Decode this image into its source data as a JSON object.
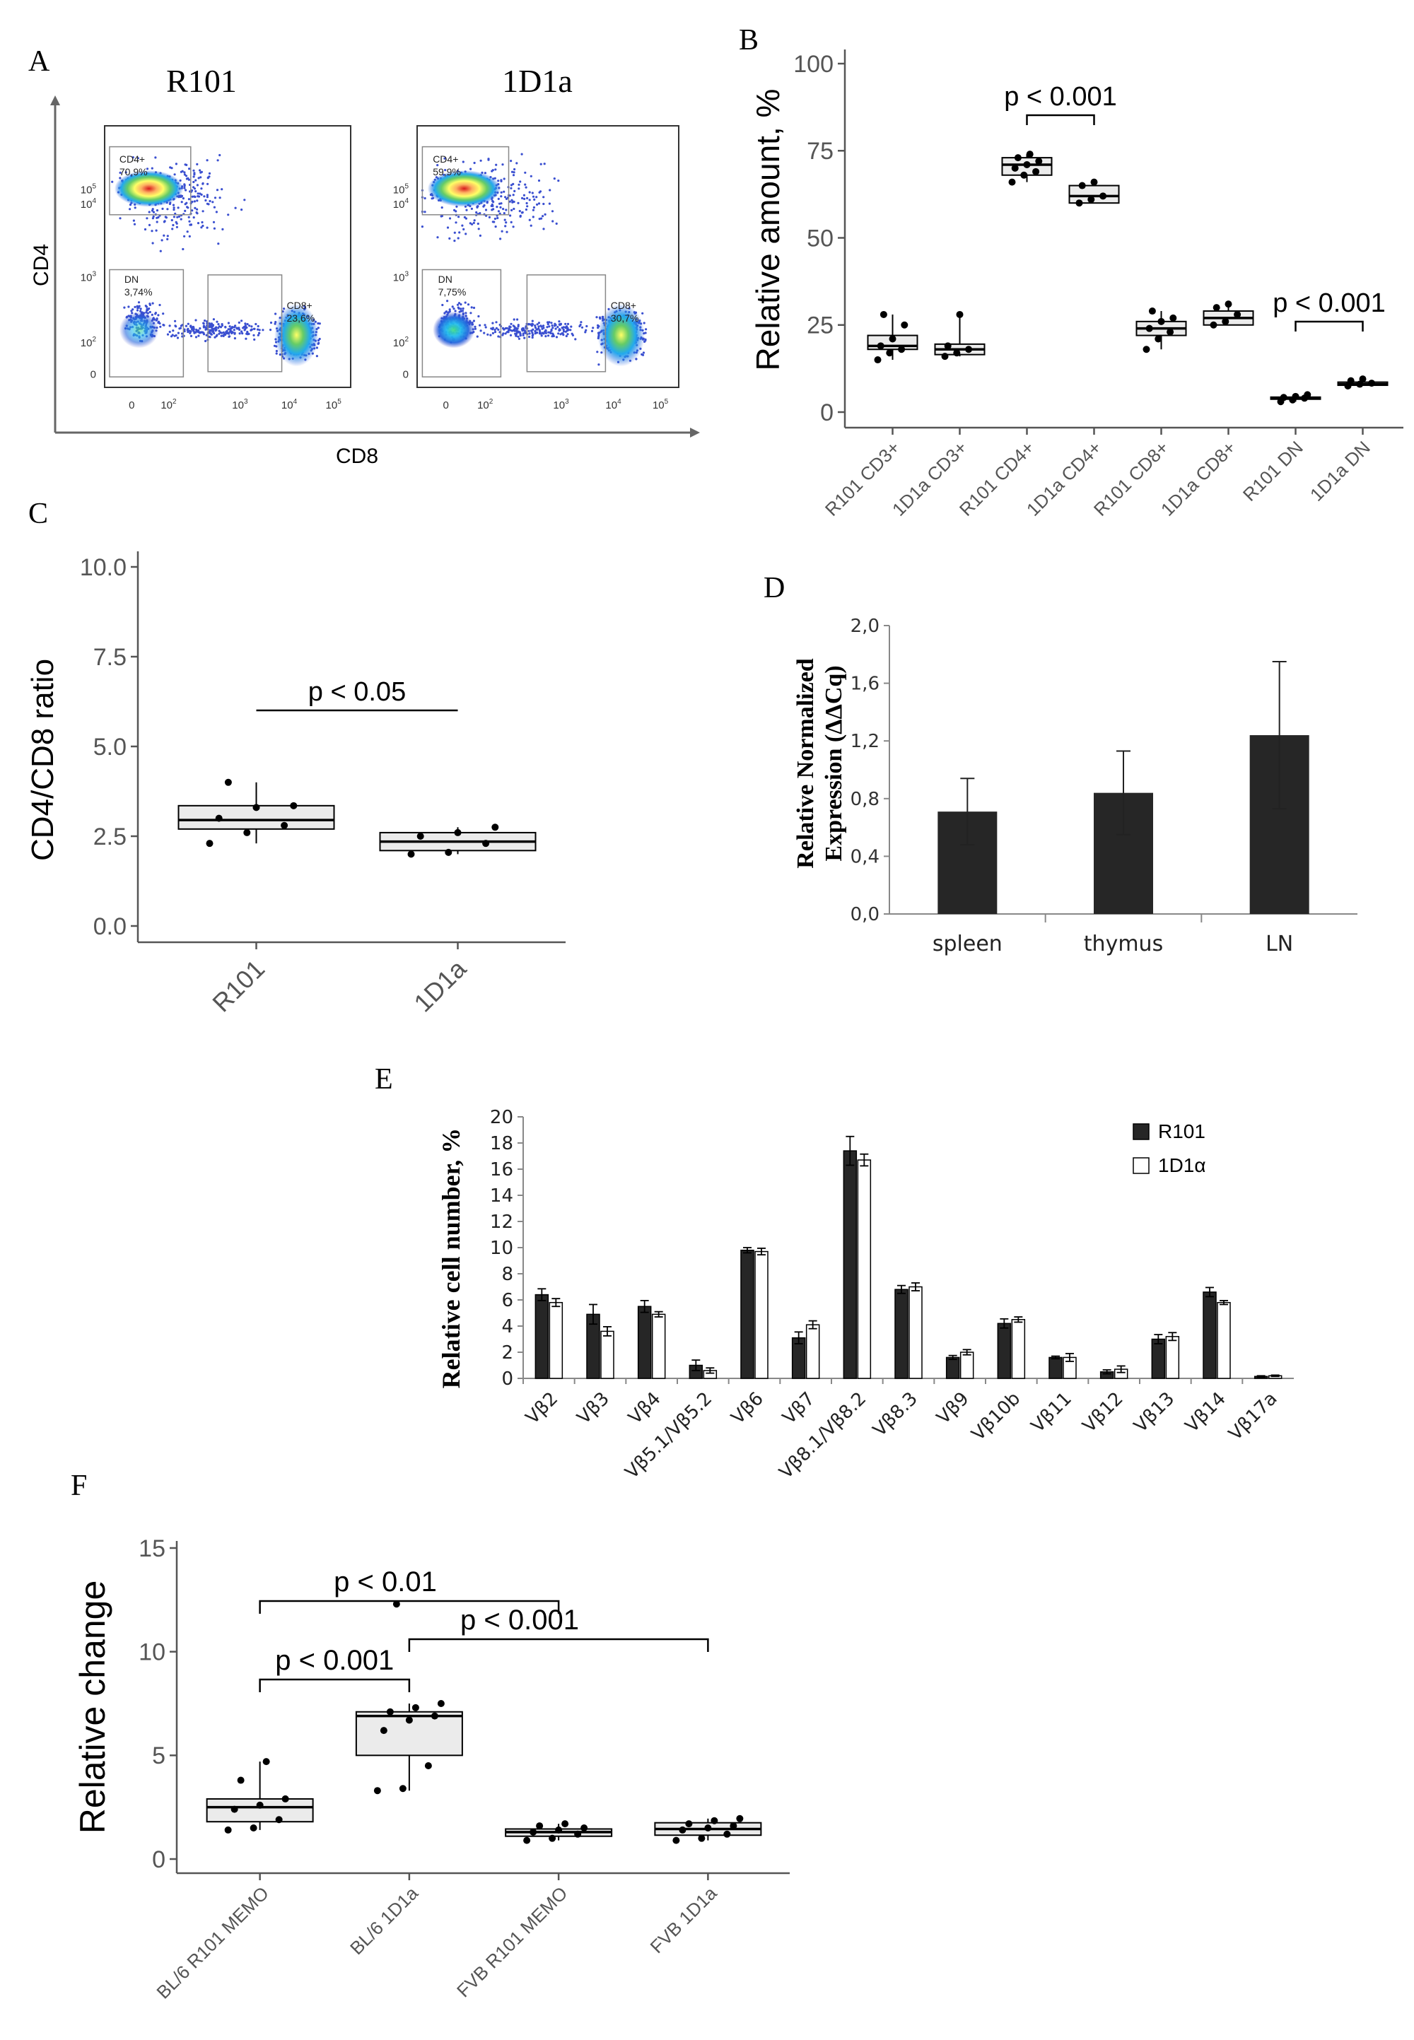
{
  "panel_letters": {
    "A": "A",
    "B": "B",
    "C": "C",
    "D": "D",
    "E": "E",
    "F": "F"
  },
  "colors": {
    "dark_bar": "#262626",
    "box_fill": "#ebebeb",
    "axis": "#404040"
  },
  "chart_data": [
    {
      "id": "A",
      "type": "scatter",
      "subtype": "flow-cytometry-density",
      "xlabel": "CD8",
      "ylabel": "CD4",
      "x_ticks": [
        "0",
        "10^2",
        "10^3",
        "10^4",
        "10^5"
      ],
      "y_ticks": [
        "0",
        "10^2",
        "10^3",
        "10^4",
        "10^5"
      ],
      "plots": [
        {
          "title": "R101",
          "gates": [
            {
              "name": "CD4+",
              "percent": "70,9%"
            },
            {
              "name": "DN",
              "percent": "3,74%"
            },
            {
              "name": "CD8+",
              "percent": "23,6%"
            }
          ]
        },
        {
          "title": "1D1a",
          "gates": [
            {
              "name": "CD4+",
              "percent": "59,9%"
            },
            {
              "name": "DN",
              "percent": "7,75%"
            },
            {
              "name": "CD8+",
              "percent": "30,7%"
            }
          ]
        }
      ]
    },
    {
      "id": "B",
      "type": "box",
      "ylabel": "Relative amount, %",
      "ylim": [
        0,
        100
      ],
      "yticks": [
        0,
        25,
        50,
        75,
        100
      ],
      "categories": [
        "R101 CD3+",
        "1D1a CD3+",
        "R101 CD4+",
        "1D1a CD4+",
        "R101 CD8+",
        "1D1a CD8+",
        "R101 DN",
        "1D1a DN"
      ],
      "boxes": [
        {
          "q1": 18,
          "median": 19,
          "q3": 22,
          "whisker_low": 15,
          "whisker_high": 28,
          "points": [
            15,
            17,
            18,
            19,
            21,
            25,
            28
          ]
        },
        {
          "q1": 16.5,
          "median": 18,
          "q3": 19.5,
          "whisker_low": 16,
          "whisker_high": 28,
          "points": [
            16,
            17,
            18,
            19,
            28
          ]
        },
        {
          "q1": 68,
          "median": 71,
          "q3": 73,
          "whisker_low": 66,
          "whisker_high": 74,
          "points": [
            66,
            68,
            69,
            70,
            71,
            72,
            73,
            74
          ]
        },
        {
          "q1": 60,
          "median": 62,
          "q3": 65,
          "whisker_low": 60,
          "whisker_high": 66,
          "points": [
            60,
            61,
            62,
            65,
            66
          ]
        },
        {
          "q1": 22,
          "median": 24,
          "q3": 26,
          "whisker_low": 18,
          "whisker_high": 29,
          "points": [
            18,
            21,
            23,
            24,
            26,
            27,
            29
          ]
        },
        {
          "q1": 25,
          "median": 27,
          "q3": 29,
          "whisker_low": 25,
          "whisker_high": 31,
          "points": [
            25,
            26,
            28,
            30,
            31
          ]
        },
        {
          "q1": 3.7,
          "median": 4,
          "q3": 4.3,
          "whisker_low": 3,
          "whisker_high": 5,
          "points": [
            3,
            3.5,
            4,
            4.2,
            4.5,
            5
          ]
        },
        {
          "q1": 7.7,
          "median": 8,
          "q3": 8.6,
          "whisker_low": 7.5,
          "whisker_high": 9.5,
          "points": [
            7.5,
            8,
            8.3,
            9,
            9.5
          ]
        }
      ],
      "annotations": [
        {
          "label": "p < 0.001",
          "between": [
            2,
            3
          ]
        },
        {
          "label": "p < 0.001",
          "between": [
            6,
            7
          ]
        }
      ]
    },
    {
      "id": "C",
      "type": "box",
      "ylabel": "CD4/CD8 ratio",
      "ylim": [
        0,
        10
      ],
      "yticks": [
        "0.0",
        "2.5",
        "5.0",
        "7.5",
        "10.0"
      ],
      "categories": [
        "R101",
        "1D1a"
      ],
      "boxes": [
        {
          "q1": 2.7,
          "median": 2.95,
          "q3": 3.35,
          "whisker_low": 2.3,
          "whisker_high": 4.0,
          "points": [
            2.3,
            2.6,
            2.8,
            3.0,
            3.3,
            3.35,
            4.0
          ]
        },
        {
          "q1": 2.1,
          "median": 2.35,
          "q3": 2.6,
          "whisker_low": 2.0,
          "whisker_high": 2.75,
          "points": [
            2.0,
            2.05,
            2.3,
            2.5,
            2.6,
            2.75
          ]
        }
      ],
      "annotations": [
        {
          "label": "p < 0.05",
          "between": [
            0,
            1
          ]
        }
      ]
    },
    {
      "id": "D",
      "type": "bar",
      "ylabel_lines": [
        "Relative Normalized",
        "Expression (ΔΔCq)"
      ],
      "ylim": [
        0,
        2
      ],
      "yticks": [
        "0,0",
        "0,4",
        "0,8",
        "1,2",
        "1,6",
        "2,0"
      ],
      "categories": [
        "spleen",
        "thymus",
        "LN"
      ],
      "values": [
        0.71,
        0.84,
        1.24
      ],
      "errors": [
        0.23,
        0.29,
        0.51
      ]
    },
    {
      "id": "E",
      "type": "bar",
      "ylabel": "Relative cell number, %",
      "ylim": [
        0,
        20
      ],
      "yticks": [
        0,
        2,
        4,
        6,
        8,
        10,
        12,
        14,
        16,
        18,
        20
      ],
      "categories": [
        "Vβ2",
        "Vβ3",
        "Vβ4",
        "Vβ5.1/Vβ5.2",
        "Vβ6",
        "Vβ7",
        "Vβ8.1/Vβ8.2",
        "Vβ8.3",
        "Vβ9",
        "Vβ10b",
        "Vβ11",
        "Vβ12",
        "Vβ13",
        "Vβ14",
        "Vβ17a"
      ],
      "series": [
        {
          "name": "R101",
          "color": "#262626",
          "values": [
            6.4,
            4.9,
            5.5,
            1.0,
            9.8,
            3.1,
            17.4,
            6.8,
            1.6,
            4.2,
            1.6,
            0.5,
            3.0,
            6.6,
            0.15
          ],
          "errors": [
            0.45,
            0.75,
            0.45,
            0.4,
            0.2,
            0.45,
            1.1,
            0.3,
            0.15,
            0.35,
            0.1,
            0.15,
            0.35,
            0.35,
            0.05
          ]
        },
        {
          "name": "1D1α",
          "color": "#ffffff",
          "values": [
            5.8,
            3.6,
            4.9,
            0.6,
            9.7,
            4.1,
            16.7,
            7.0,
            2.0,
            4.5,
            1.6,
            0.7,
            3.2,
            5.8,
            0.2
          ],
          "errors": [
            0.3,
            0.35,
            0.2,
            0.2,
            0.25,
            0.3,
            0.45,
            0.3,
            0.2,
            0.2,
            0.3,
            0.25,
            0.3,
            0.15,
            0.05
          ]
        }
      ]
    },
    {
      "id": "F",
      "type": "box",
      "ylabel": "Relative change",
      "ylim": [
        0,
        15
      ],
      "yticks": [
        0,
        5,
        10,
        15
      ],
      "categories": [
        "BL/6 R101 MEMO",
        "BL/6 1D1a",
        "FVB R101 MEMO",
        "FVB 1D1a"
      ],
      "boxes": [
        {
          "q1": 1.8,
          "median": 2.5,
          "q3": 2.9,
          "whisker_low": 1.4,
          "whisker_high": 4.7,
          "points": [
            1.4,
            1.5,
            1.9,
            2.4,
            2.6,
            2.9,
            3.8,
            4.7
          ]
        },
        {
          "q1": 5.0,
          "median": 6.9,
          "q3": 7.1,
          "whisker_low": 3.3,
          "whisker_high": 7.5,
          "points": [
            3.3,
            3.4,
            4.5,
            6.2,
            6.7,
            6.9,
            7.1,
            7.3,
            7.5,
            12.3
          ]
        },
        {
          "q1": 1.1,
          "median": 1.3,
          "q3": 1.45,
          "whisker_low": 0.9,
          "whisker_high": 1.7,
          "points": [
            0.9,
            1.0,
            1.2,
            1.3,
            1.4,
            1.5,
            1.6,
            1.7
          ]
        },
        {
          "q1": 1.15,
          "median": 1.45,
          "q3": 1.75,
          "whisker_low": 0.9,
          "whisker_high": 1.95,
          "points": [
            0.9,
            1.0,
            1.2,
            1.4,
            1.5,
            1.6,
            1.7,
            1.85,
            1.95
          ]
        }
      ],
      "annotations": [
        {
          "label": "p < 0.01",
          "between": [
            0,
            2
          ]
        },
        {
          "label": "p < 0.001",
          "between": [
            0,
            1
          ]
        },
        {
          "label": "p < 0.001",
          "between": [
            1,
            3
          ]
        }
      ]
    }
  ]
}
